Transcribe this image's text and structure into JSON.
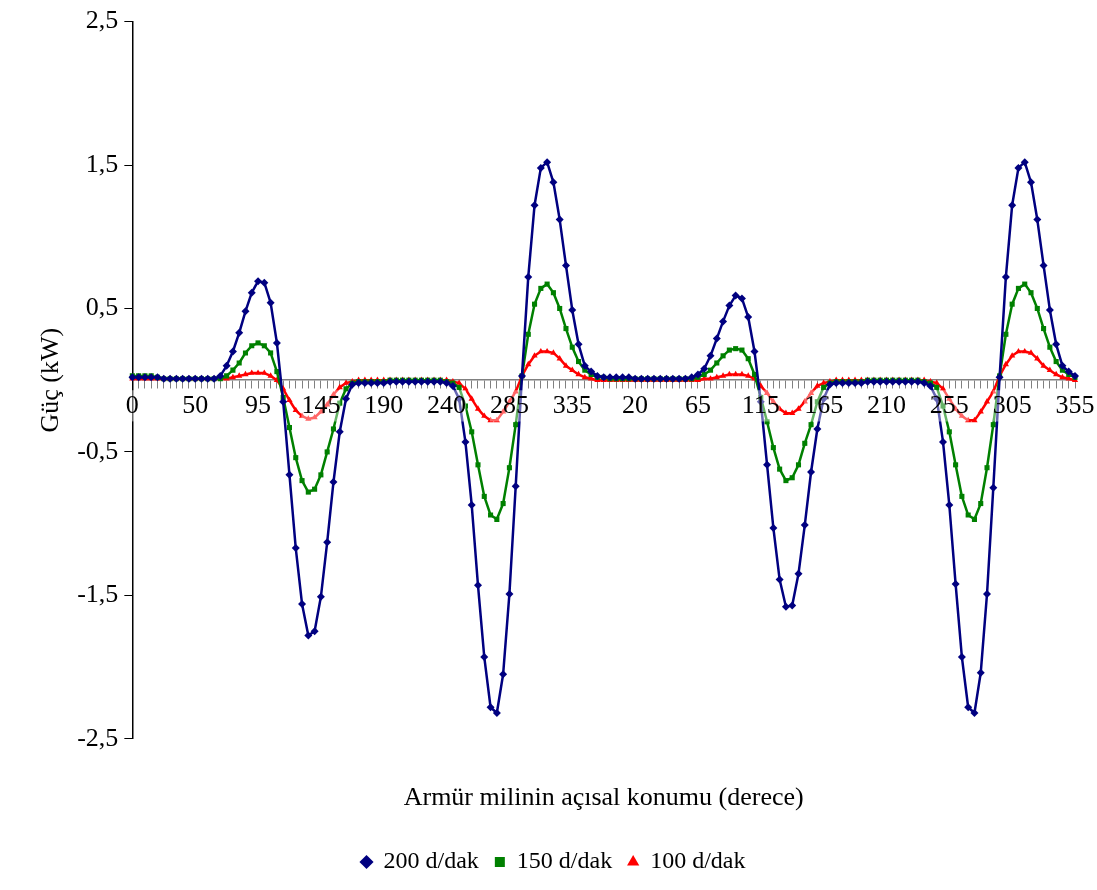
{
  "chart_data": {
    "type": "line",
    "xlabel": "Armür milinin açısal konumu (derece)",
    "ylabel": "Güç (kW)",
    "categories": [
      "0",
      null,
      null,
      null,
      null,
      null,
      null,
      null,
      null,
      null,
      "50",
      null,
      null,
      null,
      null,
      null,
      null,
      null,
      null,
      null,
      "95",
      null,
      null,
      null,
      null,
      null,
      null,
      null,
      null,
      null,
      "145",
      null,
      null,
      null,
      null,
      null,
      null,
      null,
      null,
      null,
      "190",
      null,
      null,
      null,
      null,
      null,
      null,
      null,
      null,
      null,
      "240",
      null,
      null,
      null,
      null,
      null,
      null,
      null,
      null,
      null,
      "285",
      null,
      null,
      null,
      null,
      null,
      null,
      null,
      null,
      null,
      "335",
      null,
      null,
      null,
      null,
      null,
      null,
      null,
      null,
      null,
      "20",
      null,
      null,
      null,
      null,
      null,
      null,
      null,
      null,
      null,
      "65",
      null,
      null,
      null,
      null,
      null,
      null,
      null,
      null,
      null,
      "115",
      null,
      null,
      null,
      null,
      null,
      null,
      null,
      null,
      null,
      "165",
      null,
      null,
      null,
      null,
      null,
      null,
      null,
      null,
      null,
      "210",
      null,
      null,
      null,
      null,
      null,
      null,
      null,
      null,
      null,
      "255",
      null,
      null,
      null,
      null,
      null,
      null,
      null,
      null,
      null,
      "305",
      null,
      null,
      null,
      null,
      null,
      null,
      null,
      null,
      null,
      "355"
    ],
    "ylim": [
      -2.5,
      2.5
    ],
    "yticks": [
      {
        "value": -2.5,
        "label": "-2,5"
      },
      {
        "value": -1.5,
        "label": "-1,5"
      },
      {
        "value": -0.5,
        "label": "-0,5"
      },
      {
        "value": 0.5,
        "label": "0,5"
      },
      {
        "value": 1.5,
        "label": "1,5"
      },
      {
        "value": 2.5,
        "label": "2,5"
      }
    ],
    "grid": false,
    "legend": "bottom",
    "line_style": "solid",
    "series": [
      {
        "name": "200 d/dak",
        "color": "#000080",
        "marker": "diamond",
        "values": [
          0.02,
          0.02,
          0.02,
          0.02,
          0.02,
          0.01,
          0.01,
          0.01,
          0.01,
          0.01,
          0.01,
          0.01,
          0.01,
          0.01,
          0.03,
          0.1,
          0.2,
          0.33,
          0.48,
          0.61,
          0.69,
          0.68,
          0.54,
          0.26,
          -0.15,
          -0.66,
          -1.17,
          -1.56,
          -1.78,
          -1.75,
          -1.51,
          -1.13,
          -0.71,
          -0.36,
          -0.13,
          -0.03,
          -0.02,
          -0.02,
          -0.02,
          -0.02,
          -0.02,
          -0.01,
          -0.01,
          -0.01,
          -0.01,
          -0.01,
          -0.01,
          -0.01,
          -0.01,
          -0.01,
          -0.02,
          -0.04,
          -0.13,
          -0.43,
          -0.87,
          -1.43,
          -1.93,
          -2.28,
          -2.32,
          -2.05,
          -1.49,
          -0.74,
          0.03,
          0.72,
          1.22,
          1.48,
          1.52,
          1.38,
          1.12,
          0.8,
          0.49,
          0.25,
          0.1,
          0.06,
          0.03,
          0.02,
          0.02,
          0.02,
          0.02,
          0.02,
          0.01,
          0.01,
          0.01,
          0.01,
          0.01,
          0.01,
          0.01,
          0.01,
          0.01,
          0.02,
          0.04,
          0.08,
          0.17,
          0.29,
          0.41,
          0.52,
          0.59,
          0.57,
          0.44,
          0.2,
          -0.15,
          -0.59,
          -1.03,
          -1.39,
          -1.58,
          -1.57,
          -1.35,
          -1.01,
          -0.64,
          -0.34,
          -0.13,
          -0.03,
          -0.02,
          -0.02,
          -0.02,
          -0.02,
          -0.02,
          -0.01,
          -0.01,
          -0.01,
          -0.01,
          -0.01,
          -0.01,
          -0.01,
          -0.01,
          -0.01,
          -0.02,
          -0.04,
          -0.13,
          -0.43,
          -0.87,
          -1.42,
          -1.93,
          -2.28,
          -2.32,
          -2.04,
          -1.49,
          -0.75,
          0.02,
          0.72,
          1.22,
          1.48,
          1.52,
          1.38,
          1.12,
          0.8,
          0.49,
          0.25,
          0.1,
          0.06,
          0.03
        ]
      },
      {
        "name": "150 d/dak",
        "color": "#008000",
        "marker": "square",
        "values": [
          0.03,
          0.03,
          0.03,
          0.03,
          0.02,
          0.01,
          0.01,
          0.01,
          0.01,
          0.01,
          0.01,
          0.01,
          0.01,
          0.01,
          0.01,
          0.03,
          0.07,
          0.12,
          0.19,
          0.24,
          0.26,
          0.24,
          0.19,
          0.06,
          -0.12,
          -0.33,
          -0.54,
          -0.7,
          -0.78,
          -0.76,
          -0.66,
          -0.5,
          -0.34,
          -0.16,
          -0.06,
          -0.02,
          -0.01,
          -0.01,
          -0.01,
          -0.01,
          -0.01,
          0,
          0,
          0,
          0,
          0,
          0,
          0,
          0,
          0,
          -0.01,
          -0.02,
          -0.05,
          -0.18,
          -0.36,
          -0.59,
          -0.81,
          -0.94,
          -0.97,
          -0.86,
          -0.61,
          -0.31,
          0.03,
          0.32,
          0.53,
          0.64,
          0.67,
          0.61,
          0.5,
          0.36,
          0.23,
          0.13,
          0.07,
          0.04,
          0.02,
          0.02,
          0.01,
          0.01,
          0.01,
          0.01,
          0.01,
          0.01,
          0.01,
          0.01,
          0.01,
          0.01,
          0.01,
          0.01,
          0.01,
          0.01,
          0.02,
          0.04,
          0.07,
          0.12,
          0.17,
          0.21,
          0.22,
          0.21,
          0.15,
          0.04,
          -0.12,
          -0.29,
          -0.47,
          -0.62,
          -0.7,
          -0.68,
          -0.59,
          -0.44,
          -0.31,
          -0.15,
          -0.05,
          -0.02,
          -0.01,
          -0.01,
          -0.01,
          -0.01,
          -0.01,
          0,
          0,
          0,
          0,
          0,
          0,
          0,
          0,
          0,
          -0.01,
          -0.02,
          -0.05,
          -0.18,
          -0.36,
          -0.59,
          -0.81,
          -0.94,
          -0.97,
          -0.86,
          -0.61,
          -0.31,
          0.03,
          0.32,
          0.53,
          0.64,
          0.67,
          0.61,
          0.5,
          0.36,
          0.23,
          0.13,
          0.07,
          0.04,
          0.02
        ]
      },
      {
        "name": "100 d/dak",
        "color": "#ff0000",
        "marker": "triangle",
        "values": [
          0.01,
          0.01,
          0.01,
          0.01,
          0.01,
          0.01,
          0.01,
          0.01,
          0.01,
          0.01,
          0.01,
          0.01,
          0.01,
          0.01,
          0.01,
          0.01,
          0.02,
          0.03,
          0.04,
          0.05,
          0.05,
          0.05,
          0.03,
          0,
          -0.06,
          -0.14,
          -0.21,
          -0.25,
          -0.27,
          -0.26,
          -0.22,
          -0.17,
          -0.1,
          -0.05,
          -0.02,
          -0.01,
          0,
          0,
          0,
          0,
          0,
          0,
          0,
          0,
          0,
          0,
          0,
          0,
          0,
          0,
          0,
          -0.01,
          -0.02,
          -0.06,
          -0.13,
          -0.2,
          -0.25,
          -0.28,
          -0.28,
          -0.22,
          -0.15,
          -0.08,
          0.03,
          0.11,
          0.17,
          0.2,
          0.2,
          0.19,
          0.15,
          0.1,
          0.07,
          0.04,
          0.02,
          0.01,
          0,
          0,
          0,
          0,
          0,
          0,
          0,
          0,
          0,
          0,
          0,
          0,
          0,
          0,
          0,
          0,
          0,
          0.01,
          0.01,
          0.02,
          0.03,
          0.04,
          0.04,
          0.04,
          0.03,
          0.01,
          -0.04,
          -0.09,
          -0.15,
          -0.2,
          -0.23,
          -0.23,
          -0.2,
          -0.15,
          -0.09,
          -0.04,
          -0.02,
          -0.01,
          0,
          0,
          0,
          0,
          0,
          0,
          0,
          0,
          0,
          0,
          0,
          0,
          0,
          0,
          0,
          -0.01,
          -0.02,
          -0.06,
          -0.13,
          -0.2,
          -0.25,
          -0.28,
          -0.28,
          -0.22,
          -0.15,
          -0.08,
          0.03,
          0.11,
          0.17,
          0.2,
          0.2,
          0.19,
          0.15,
          0.1,
          0.07,
          0.04,
          0.02,
          0.01,
          0
        ]
      }
    ]
  }
}
